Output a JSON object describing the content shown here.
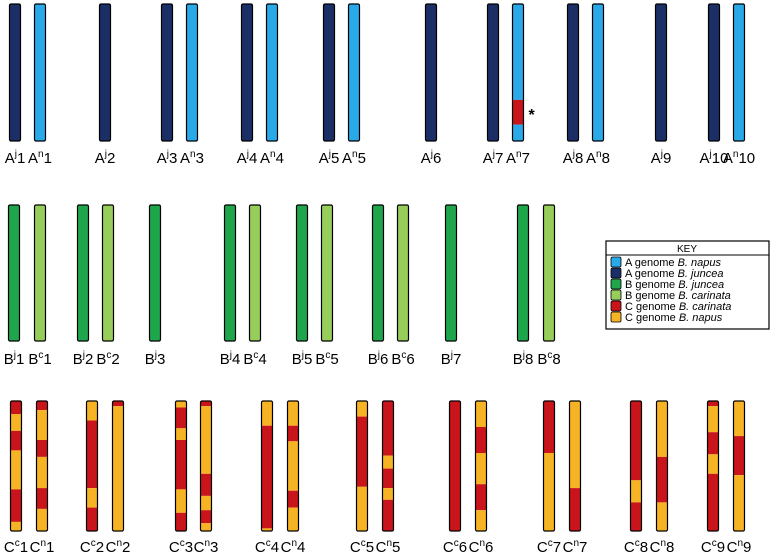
{
  "colors": {
    "A genome B. napus": "#29a9e8",
    "A genome B. juncea": "#1b2e66",
    "B genome B. juncea": "#1fa54b",
    "B genome B. carinata": "#97cd5a",
    "C genome B. carinata": "#c8141a",
    "C genome B. napus": "#f6b425",
    "outline": "#000000"
  },
  "key": {
    "title": "KEY",
    "entries": [
      {
        "genome": "A genome ",
        "species": "B. napus",
        "color_ref": "A genome B. napus"
      },
      {
        "genome": "A genome ",
        "species": "B. juncea",
        "color_ref": "A genome B. juncea"
      },
      {
        "genome": "B genome ",
        "species": "B. juncea",
        "color_ref": "B genome B. juncea"
      },
      {
        "genome": "B genome ",
        "species": "B. carinata",
        "color_ref": "B genome B. carinata"
      },
      {
        "genome": "C genome ",
        "species": "B. carinata",
        "color_ref": "C genome B. carinata"
      },
      {
        "genome": "C genome ",
        "species": "B. napus",
        "color_ref": "C genome B. napus"
      }
    ]
  },
  "annotation": "*",
  "rows": [
    {
      "name": "A",
      "chromosomes": [
        {
          "base": "A",
          "sup": "j",
          "num": "1",
          "color": "A genome B. juncea"
        },
        {
          "base": "A",
          "sup": "n",
          "num": "1",
          "color": "A genome B. napus"
        },
        {
          "base": "A",
          "sup": "j",
          "num": "2",
          "color": "A genome B. juncea"
        },
        {
          "base": "A",
          "sup": "j",
          "num": "3",
          "color": "A genome B. juncea"
        },
        {
          "base": "A",
          "sup": "n",
          "num": "3",
          "color": "A genome B. napus"
        },
        {
          "base": "A",
          "sup": "j",
          "num": "4",
          "color": "A genome B. juncea"
        },
        {
          "base": "A",
          "sup": "n",
          "num": "4",
          "color": "A genome B. napus"
        },
        {
          "base": "A",
          "sup": "j",
          "num": "5",
          "color": "A genome B. juncea"
        },
        {
          "base": "A",
          "sup": "n",
          "num": "5",
          "color": "A genome B. napus"
        },
        {
          "base": "A",
          "sup": "j",
          "num": "6",
          "color": "A genome B. juncea"
        },
        {
          "base": "A",
          "sup": "j",
          "num": "7",
          "color": "A genome B. juncea"
        },
        {
          "base": "A",
          "sup": "n",
          "num": "7",
          "color": "A genome B. napus",
          "segments": [
            {
              "from": 0,
              "to": 0.7,
              "color": "A genome B. napus"
            },
            {
              "from": 0.7,
              "to": 0.88,
              "color": "C genome B. carinata"
            },
            {
              "from": 0.88,
              "to": 1,
              "color": "A genome B. napus"
            }
          ],
          "annotated": true
        },
        {
          "base": "A",
          "sup": "j",
          "num": "8",
          "color": "A genome B. juncea"
        },
        {
          "base": "A",
          "sup": "n",
          "num": "8",
          "color": "A genome B. napus"
        },
        {
          "base": "A",
          "sup": "j",
          "num": "9",
          "color": "A genome B. juncea"
        },
        {
          "base": "A",
          "sup": "j",
          "num": "10",
          "color": "A genome B. juncea"
        },
        {
          "base": "A",
          "sup": "n",
          "num": "10",
          "color": "A genome B. napus"
        }
      ]
    },
    {
      "name": "B",
      "chromosomes": [
        {
          "base": "B",
          "sup": "j",
          "num": "1",
          "color": "B genome B. juncea"
        },
        {
          "base": "B",
          "sup": "c",
          "num": "1",
          "color": "B genome B. carinata"
        },
        {
          "base": "B",
          "sup": "j",
          "num": "2",
          "color": "B genome B. juncea"
        },
        {
          "base": "B",
          "sup": "c",
          "num": "2",
          "color": "B genome B. carinata"
        },
        {
          "base": "B",
          "sup": "j",
          "num": "3",
          "color": "B genome B. juncea"
        },
        {
          "base": "B",
          "sup": "j",
          "num": "4",
          "color": "B genome B. juncea"
        },
        {
          "base": "B",
          "sup": "c",
          "num": "4",
          "color": "B genome B. carinata"
        },
        {
          "base": "B",
          "sup": "j",
          "num": "5",
          "color": "B genome B. juncea"
        },
        {
          "base": "B",
          "sup": "c",
          "num": "5",
          "color": "B genome B. carinata"
        },
        {
          "base": "B",
          "sup": "j",
          "num": "6",
          "color": "B genome B. juncea"
        },
        {
          "base": "B",
          "sup": "c",
          "num": "6",
          "color": "B genome B. carinata"
        },
        {
          "base": "B",
          "sup": "j",
          "num": "7",
          "color": "B genome B. juncea"
        },
        {
          "base": "B",
          "sup": "j",
          "num": "8",
          "color": "B genome B. juncea"
        },
        {
          "base": "B",
          "sup": "c",
          "num": "8",
          "color": "B genome B. carinata"
        }
      ]
    },
    {
      "name": "C",
      "chromosomes": [
        {
          "base": "C",
          "sup": "c",
          "num": "1",
          "segments": [
            {
              "from": 0,
              "to": 0.1,
              "color": "C genome B. carinata"
            },
            {
              "from": 0.1,
              "to": 0.23,
              "color": "C genome B. napus"
            },
            {
              "from": 0.23,
              "to": 0.38,
              "color": "C genome B. carinata"
            },
            {
              "from": 0.38,
              "to": 0.68,
              "color": "C genome B. napus"
            },
            {
              "from": 0.68,
              "to": 0.93,
              "color": "C genome B. carinata"
            },
            {
              "from": 0.93,
              "to": 1,
              "color": "C genome B. napus"
            }
          ]
        },
        {
          "base": "C",
          "sup": "n",
          "num": "1",
          "segments": [
            {
              "from": 0,
              "to": 0.07,
              "color": "C genome B. carinata"
            },
            {
              "from": 0.07,
              "to": 0.3,
              "color": "C genome B. napus"
            },
            {
              "from": 0.3,
              "to": 0.43,
              "color": "C genome B. carinata"
            },
            {
              "from": 0.43,
              "to": 0.67,
              "color": "C genome B. napus"
            },
            {
              "from": 0.67,
              "to": 0.83,
              "color": "C genome B. carinata"
            },
            {
              "from": 0.83,
              "to": 1,
              "color": "C genome B. napus"
            }
          ]
        },
        {
          "base": "C",
          "sup": "c",
          "num": "2",
          "segments": [
            {
              "from": 0,
              "to": 0.15,
              "color": "C genome B. napus"
            },
            {
              "from": 0.15,
              "to": 0.67,
              "color": "C genome B. carinata"
            },
            {
              "from": 0.67,
              "to": 0.82,
              "color": "C genome B. napus"
            },
            {
              "from": 0.82,
              "to": 1,
              "color": "C genome B. carinata"
            }
          ]
        },
        {
          "base": "C",
          "sup": "n",
          "num": "2",
          "segments": [
            {
              "from": 0,
              "to": 0.04,
              "color": "C genome B. carinata"
            },
            {
              "from": 0.04,
              "to": 1,
              "color": "C genome B. napus"
            }
          ]
        },
        {
          "base": "C",
          "sup": "c",
          "num": "3",
          "segments": [
            {
              "from": 0,
              "to": 0.05,
              "color": "C genome B. napus"
            },
            {
              "from": 0.05,
              "to": 0.21,
              "color": "C genome B. carinata"
            },
            {
              "from": 0.21,
              "to": 0.3,
              "color": "C genome B. napus"
            },
            {
              "from": 0.3,
              "to": 0.68,
              "color": "C genome B. carinata"
            },
            {
              "from": 0.68,
              "to": 0.86,
              "color": "C genome B. napus"
            },
            {
              "from": 0.86,
              "to": 1,
              "color": "C genome B. carinata"
            }
          ]
        },
        {
          "base": "C",
          "sup": "n",
          "num": "3",
          "segments": [
            {
              "from": 0,
              "to": 0.04,
              "color": "C genome B. carinata"
            },
            {
              "from": 0.04,
              "to": 0.56,
              "color": "C genome B. napus"
            },
            {
              "from": 0.56,
              "to": 0.73,
              "color": "C genome B. carinata"
            },
            {
              "from": 0.73,
              "to": 0.84,
              "color": "C genome B. napus"
            },
            {
              "from": 0.84,
              "to": 0.94,
              "color": "C genome B. carinata"
            },
            {
              "from": 0.94,
              "to": 1,
              "color": "C genome B. napus"
            }
          ]
        },
        {
          "base": "C",
          "sup": "c",
          "num": "4",
          "segments": [
            {
              "from": 0,
              "to": 0.19,
              "color": "C genome B. napus"
            },
            {
              "from": 0.19,
              "to": 0.98,
              "color": "C genome B. carinata"
            },
            {
              "from": 0.98,
              "to": 1,
              "color": "C genome B. napus"
            }
          ]
        },
        {
          "base": "C",
          "sup": "n",
          "num": "4",
          "segments": [
            {
              "from": 0,
              "to": 0.19,
              "color": "C genome B. napus"
            },
            {
              "from": 0.19,
              "to": 0.31,
              "color": "C genome B. carinata"
            },
            {
              "from": 0.31,
              "to": 0.69,
              "color": "C genome B. napus"
            },
            {
              "from": 0.69,
              "to": 0.82,
              "color": "C genome B. carinata"
            },
            {
              "from": 0.82,
              "to": 1,
              "color": "C genome B. napus"
            }
          ]
        },
        {
          "base": "C",
          "sup": "c",
          "num": "5",
          "segments": [
            {
              "from": 0,
              "to": 0.12,
              "color": "C genome B. napus"
            },
            {
              "from": 0.12,
              "to": 0.66,
              "color": "C genome B. carinata"
            },
            {
              "from": 0.66,
              "to": 1,
              "color": "C genome B. napus"
            }
          ]
        },
        {
          "base": "C",
          "sup": "n",
          "num": "5",
          "segments": [
            {
              "from": 0,
              "to": 0.42,
              "color": "C genome B. carinata"
            },
            {
              "from": 0.42,
              "to": 0.52,
              "color": "C genome B. napus"
            },
            {
              "from": 0.52,
              "to": 0.67,
              "color": "C genome B. carinata"
            },
            {
              "from": 0.67,
              "to": 0.76,
              "color": "C genome B. napus"
            },
            {
              "from": 0.76,
              "to": 1,
              "color": "C genome B. carinata"
            }
          ]
        },
        {
          "base": "C",
          "sup": "c",
          "num": "6",
          "segments": [
            {
              "from": 0,
              "to": 1,
              "color": "C genome B. carinata"
            }
          ]
        },
        {
          "base": "C",
          "sup": "n",
          "num": "6",
          "segments": [
            {
              "from": 0,
              "to": 0.2,
              "color": "C genome B. napus"
            },
            {
              "from": 0.2,
              "to": 0.4,
              "color": "C genome B. carinata"
            },
            {
              "from": 0.4,
              "to": 0.64,
              "color": "C genome B. napus"
            },
            {
              "from": 0.64,
              "to": 0.84,
              "color": "C genome B. carinata"
            },
            {
              "from": 0.84,
              "to": 1,
              "color": "C genome B. napus"
            }
          ]
        },
        {
          "base": "C",
          "sup": "c",
          "num": "7",
          "segments": [
            {
              "from": 0,
              "to": 0.4,
              "color": "C genome B. carinata"
            },
            {
              "from": 0.4,
              "to": 1,
              "color": "C genome B. napus"
            }
          ]
        },
        {
          "base": "C",
          "sup": "n",
          "num": "7",
          "segments": [
            {
              "from": 0,
              "to": 0.67,
              "color": "C genome B. napus"
            },
            {
              "from": 0.67,
              "to": 1,
              "color": "C genome B. carinata"
            }
          ]
        },
        {
          "base": "C",
          "sup": "c",
          "num": "8",
          "segments": [
            {
              "from": 0,
              "to": 0.61,
              "color": "C genome B. carinata"
            },
            {
              "from": 0.61,
              "to": 0.78,
              "color": "C genome B. napus"
            },
            {
              "from": 0.78,
              "to": 1,
              "color": "C genome B. carinata"
            }
          ]
        },
        {
          "base": "C",
          "sup": "n",
          "num": "8",
          "segments": [
            {
              "from": 0,
              "to": 0.43,
              "color": "C genome B. napus"
            },
            {
              "from": 0.43,
              "to": 0.78,
              "color": "C genome B. carinata"
            },
            {
              "from": 0.78,
              "to": 1,
              "color": "C genome B. napus"
            }
          ]
        },
        {
          "base": "C",
          "sup": "c",
          "num": "9",
          "segments": [
            {
              "from": 0,
              "to": 0.04,
              "color": "C genome B. carinata"
            },
            {
              "from": 0.04,
              "to": 0.24,
              "color": "C genome B. napus"
            },
            {
              "from": 0.24,
              "to": 0.41,
              "color": "C genome B. carinata"
            },
            {
              "from": 0.41,
              "to": 0.56,
              "color": "C genome B. napus"
            },
            {
              "from": 0.56,
              "to": 1,
              "color": "C genome B. carinata"
            }
          ]
        },
        {
          "base": "C",
          "sup": "n",
          "num": "9",
          "segments": [
            {
              "from": 0,
              "to": 0.27,
              "color": "C genome B. napus"
            },
            {
              "from": 0.27,
              "to": 0.57,
              "color": "C genome B. carinata"
            },
            {
              "from": 0.57,
              "to": 1,
              "color": "C genome B. napus"
            }
          ]
        }
      ]
    }
  ]
}
